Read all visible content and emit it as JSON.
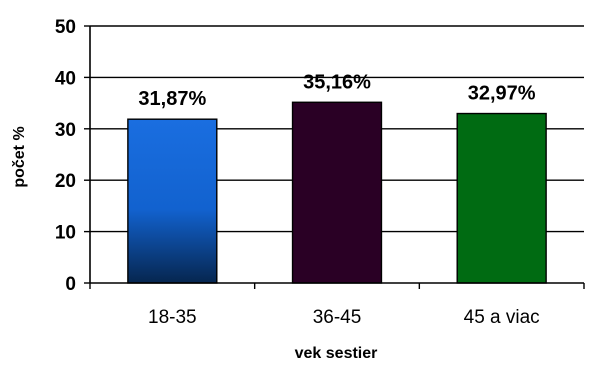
{
  "chart_data": {
    "type": "bar",
    "title": "",
    "xlabel": "vek sestier",
    "ylabel": "počet %",
    "ylim": [
      0,
      50
    ],
    "yticks": [
      0,
      10,
      20,
      30,
      40,
      50
    ],
    "grid": true,
    "categories": [
      "18-35",
      "36-45",
      "45 a viac"
    ],
    "values": [
      31.87,
      35.16,
      32.97
    ],
    "data_labels": [
      "31,87%",
      "35,16%",
      "32,97%"
    ],
    "bar_colors": [
      "#1565d8",
      "#2a0025",
      "#006b12"
    ]
  }
}
